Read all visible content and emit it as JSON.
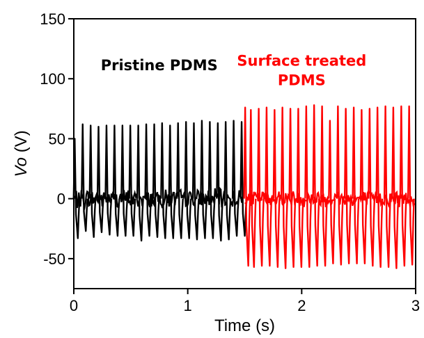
{
  "chart_data": {
    "type": "line",
    "xlabel": "Time (s)",
    "ylabel_main": "Vo",
    "ylabel_unit": " (V)",
    "xlim": [
      0,
      3
    ],
    "ylim": [
      -75,
      150
    ],
    "xticks": [
      0,
      1,
      2,
      3
    ],
    "xtick_labels": [
      "0",
      "1",
      "2",
      "3"
    ],
    "yticks": [
      -50,
      0,
      50,
      100,
      150
    ],
    "ytick_labels": [
      "-50",
      "0",
      "50",
      "100",
      "150"
    ],
    "grid": false,
    "annotations": [
      {
        "lines": [
          "Pristine PDMS"
        ],
        "color": "#000000",
        "x": 0.75,
        "y": 107
      },
      {
        "lines": [
          "Surface treated",
          "PDMS"
        ],
        "color": "#ff0000",
        "x": 2.0,
        "y": 111
      }
    ],
    "series": [
      {
        "color": "#000000",
        "x_start": 0.0,
        "x_end": 1.5,
        "noise_amplitude": 9,
        "spikes": [
          {
            "t": 0.014,
            "peak": 50,
            "trough": -33
          },
          {
            "t": 0.084,
            "peak": 62,
            "trough": -27
          },
          {
            "t": 0.154,
            "peak": 61,
            "trough": -32
          },
          {
            "t": 0.223,
            "peak": 60,
            "trough": -28
          },
          {
            "t": 0.293,
            "peak": 61,
            "trough": -30
          },
          {
            "t": 0.363,
            "peak": 61,
            "trough": -31
          },
          {
            "t": 0.433,
            "peak": 61,
            "trough": -31
          },
          {
            "t": 0.502,
            "peak": 61,
            "trough": -31
          },
          {
            "t": 0.572,
            "peak": 61,
            "trough": -35
          },
          {
            "t": 0.642,
            "peak": 62,
            "trough": -31
          },
          {
            "t": 0.712,
            "peak": 62,
            "trough": -32
          },
          {
            "t": 0.781,
            "peak": 63,
            "trough": -33
          },
          {
            "t": 0.851,
            "peak": 61,
            "trough": -33
          },
          {
            "t": 0.921,
            "peak": 63,
            "trough": -33
          },
          {
            "t": 0.991,
            "peak": 64,
            "trough": -33
          },
          {
            "t": 1.06,
            "peak": 63,
            "trough": -34
          },
          {
            "t": 1.13,
            "peak": 65,
            "trough": -33
          },
          {
            "t": 1.2,
            "peak": 64,
            "trough": -33
          },
          {
            "t": 1.27,
            "peak": 63,
            "trough": -35
          },
          {
            "t": 1.339,
            "peak": 64,
            "trough": -34
          },
          {
            "t": 1.409,
            "peak": 65,
            "trough": -31
          },
          {
            "t": 1.479,
            "peak": 64,
            "trough": -31
          }
        ]
      },
      {
        "color": "#ff0000",
        "x_start": 1.5,
        "x_end": 3.0,
        "noise_amplitude": 8,
        "spikes": [
          {
            "t": 1.51,
            "peak": 76,
            "trough": -56
          },
          {
            "t": 1.56,
            "peak": 74,
            "trough": -57
          },
          {
            "t": 1.629,
            "peak": 75,
            "trough": -56
          },
          {
            "t": 1.698,
            "peak": 76,
            "trough": -56
          },
          {
            "t": 1.768,
            "peak": 74,
            "trough": -57
          },
          {
            "t": 1.837,
            "peak": 76,
            "trough": -58
          },
          {
            "t": 1.907,
            "peak": 75,
            "trough": -57
          },
          {
            "t": 1.976,
            "peak": 75,
            "trough": -57
          },
          {
            "t": 2.046,
            "peak": 77,
            "trough": -57
          },
          {
            "t": 2.115,
            "peak": 78,
            "trough": -56
          },
          {
            "t": 2.185,
            "peak": 77,
            "trough": -56
          },
          {
            "t": 2.254,
            "peak": 65,
            "trough": -54
          },
          {
            "t": 2.324,
            "peak": 77,
            "trough": -55
          },
          {
            "t": 2.393,
            "peak": 75,
            "trough": -54
          },
          {
            "t": 2.463,
            "peak": 76,
            "trough": -54
          },
          {
            "t": 2.532,
            "peak": 74,
            "trough": -54
          },
          {
            "t": 2.602,
            "peak": 75,
            "trough": -56
          },
          {
            "t": 2.671,
            "peak": 76,
            "trough": -57
          },
          {
            "t": 2.741,
            "peak": 77,
            "trough": -57
          },
          {
            "t": 2.81,
            "peak": 76,
            "trough": -58
          },
          {
            "t": 2.88,
            "peak": 77,
            "trough": -56
          },
          {
            "t": 2.949,
            "peak": 77,
            "trough": -55
          }
        ]
      }
    ]
  }
}
